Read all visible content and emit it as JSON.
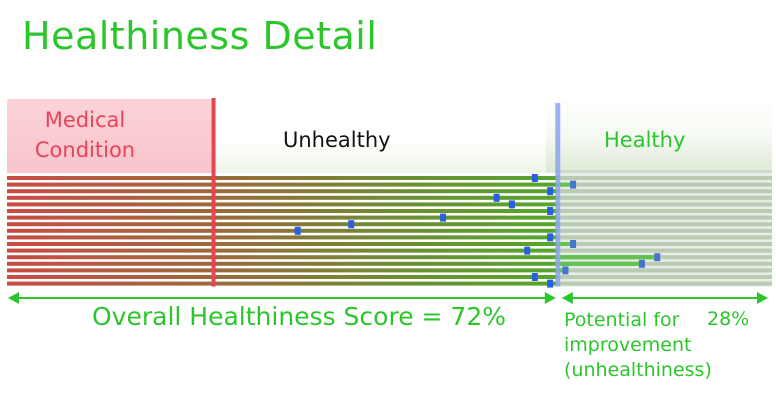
{
  "title": "Healthiness Detail",
  "zones": {
    "medical": "Medical Condition",
    "unhealthy": "Unhealthy",
    "healthy": "Healthy"
  },
  "score_label": "Overall Healthiness Score = 72%",
  "potential_label": "Potential for\nimprovement\n(unhealthiness)",
  "potential_pct": "28%",
  "colors": {
    "medical_line": "#e84452",
    "overall_line": "#8aa6ec",
    "marker": "#2a5fe0",
    "arrow": "#2cc62c",
    "text_green": "#2cc62c",
    "text_red": "#e8435b"
  },
  "chart_data": {
    "type": "bar",
    "orientation": "horizontal",
    "x_range": [
      0,
      100
    ],
    "medical_threshold": 27,
    "overall_score": 72,
    "potential": 28,
    "values": [
      69,
      74,
      71,
      64,
      66,
      71,
      57,
      45,
      38,
      71,
      74,
      68,
      85,
      83,
      73,
      69,
      71
    ]
  }
}
